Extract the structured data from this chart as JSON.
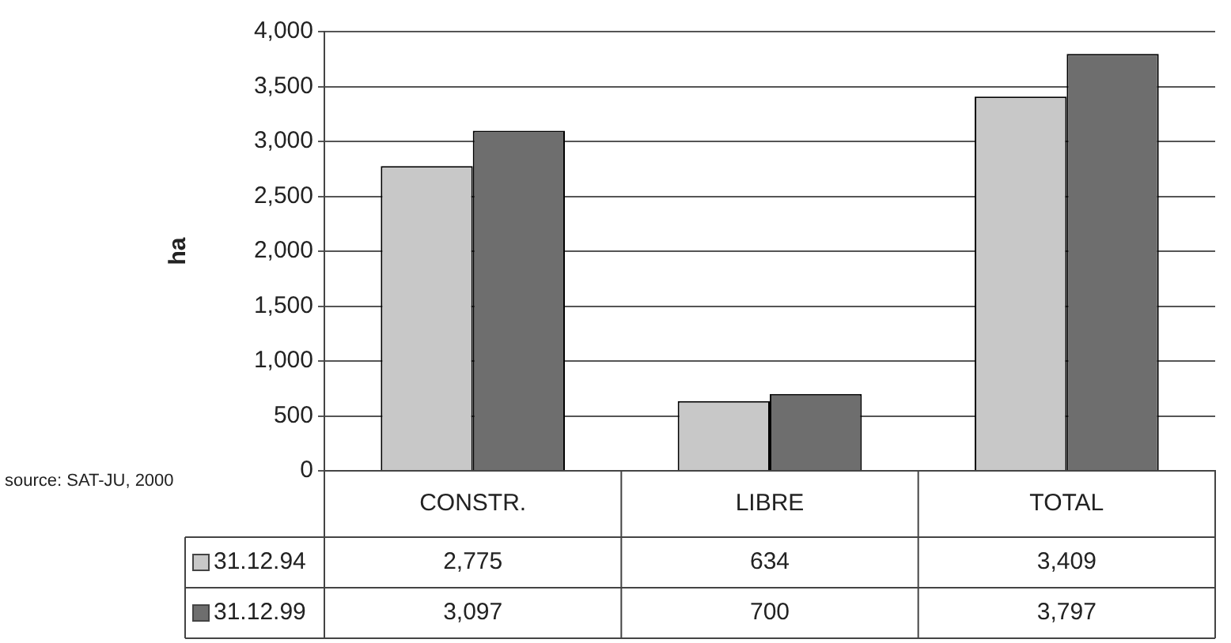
{
  "chart_data": {
    "type": "bar",
    "ylabel": "ha",
    "categories": [
      "CONSTR.",
      "LIBRE",
      "TOTAL"
    ],
    "series": [
      {
        "name": "31.12.94",
        "color": "#c8c8c8",
        "values": [
          2775,
          634,
          3409
        ],
        "value_labels": [
          "2,775",
          "634",
          "3,409"
        ]
      },
      {
        "name": "31.12.99",
        "color": "#6e6e6e",
        "values": [
          3097,
          700,
          3797
        ],
        "value_labels": [
          "3,097",
          "700",
          "3,797"
        ]
      }
    ],
    "ylim": [
      0,
      4000
    ],
    "yticks": [
      {
        "value": 0,
        "label": "0"
      },
      {
        "value": 500,
        "label": "500"
      },
      {
        "value": 1000,
        "label": "1,000"
      },
      {
        "value": 1500,
        "label": "1,500"
      },
      {
        "value": 2000,
        "label": "2,000"
      },
      {
        "value": 2500,
        "label": "2,500"
      },
      {
        "value": 3000,
        "label": "3,000"
      },
      {
        "value": 3500,
        "label": "3,500"
      },
      {
        "value": 4000,
        "label": "4,000"
      }
    ],
    "grid": "y",
    "legend": "bottom left",
    "annotations": [
      "source: SAT-JU, 2000"
    ]
  }
}
